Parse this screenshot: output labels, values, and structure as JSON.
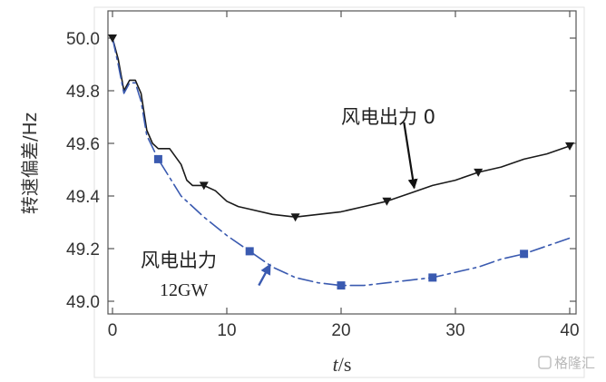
{
  "chart_data": {
    "type": "line",
    "xlabel_italic": "t",
    "xlabel_unit": "/s",
    "ylabel": "转速偏差/Hz",
    "xlim": [
      0,
      40
    ],
    "ylim": [
      48.97,
      50.07
    ],
    "x_ticks": [
      0,
      10,
      20,
      30,
      40
    ],
    "x_tick_labels": [
      "0",
      "10",
      "20",
      "30",
      "40"
    ],
    "y_ticks": [
      49.0,
      49.2,
      49.4,
      49.6,
      49.8,
      50.0
    ],
    "y_tick_labels": [
      "49.0",
      "49.2",
      "49.4",
      "49.6",
      "49.8",
      "50.0"
    ],
    "grid": false,
    "series": [
      {
        "name": "风电出力 0",
        "color": "#1a1a1a",
        "line_style": "solid",
        "marker": "triangle-down",
        "x": [
          0,
          0.5,
          1.0,
          1.5,
          2.0,
          2.5,
          3.0,
          3.5,
          4.0,
          5.0,
          6.0,
          6.5,
          7.0,
          8.0,
          9.0,
          10.0,
          11.0,
          12.0,
          14.0,
          16.0,
          18.0,
          20.0,
          22.0,
          24.0,
          26.0,
          28.0,
          30.0,
          32.0,
          34.0,
          36.0,
          38.0,
          40.0
        ],
        "y": [
          50.0,
          49.92,
          49.8,
          49.84,
          49.84,
          49.79,
          49.65,
          49.6,
          49.58,
          49.58,
          49.52,
          49.46,
          49.44,
          49.44,
          49.42,
          49.38,
          49.36,
          49.35,
          49.33,
          49.32,
          49.33,
          49.34,
          49.36,
          49.38,
          49.41,
          49.44,
          49.46,
          49.49,
          49.51,
          49.54,
          49.56,
          49.59
        ],
        "marker_x": [
          0,
          8,
          16,
          24,
          32,
          40
        ],
        "marker_y": [
          50.0,
          49.44,
          49.32,
          49.38,
          49.49,
          49.59
        ]
      },
      {
        "name": "风电出力 12GW",
        "color": "#3a5ab0",
        "line_style": "dashdot",
        "marker": "square",
        "x": [
          0,
          0.5,
          1.0,
          1.5,
          2.0,
          2.5,
          3.0,
          4.0,
          5.0,
          6.0,
          8.0,
          10.0,
          12.0,
          14.0,
          16.0,
          18.0,
          20.0,
          22.0,
          24.0,
          26.0,
          28.0,
          30.0,
          32.0,
          34.0,
          36.0,
          38.0,
          40.0
        ],
        "y": [
          50.0,
          49.9,
          49.79,
          49.83,
          49.83,
          49.76,
          49.63,
          49.54,
          49.47,
          49.4,
          49.32,
          49.25,
          49.19,
          49.13,
          49.09,
          49.07,
          49.06,
          49.06,
          49.07,
          49.08,
          49.09,
          49.11,
          49.13,
          49.16,
          49.18,
          49.21,
          49.24
        ],
        "marker_x": [
          4,
          12,
          20,
          28,
          36
        ],
        "marker_y": [
          49.54,
          49.19,
          49.06,
          49.09,
          49.18
        ]
      }
    ],
    "annotations": [
      {
        "text": "风电出力 0",
        "arrow_from": [
          25.5,
          49.68
        ],
        "arrow_to": [
          26.4,
          49.43
        ]
      },
      {
        "text_line1": "风电出力",
        "text_line2": "12GW",
        "arrow_from": [
          12.8,
          49.06
        ],
        "arrow_to": [
          13.8,
          49.14
        ]
      }
    ]
  },
  "watermark": "格隆汇"
}
